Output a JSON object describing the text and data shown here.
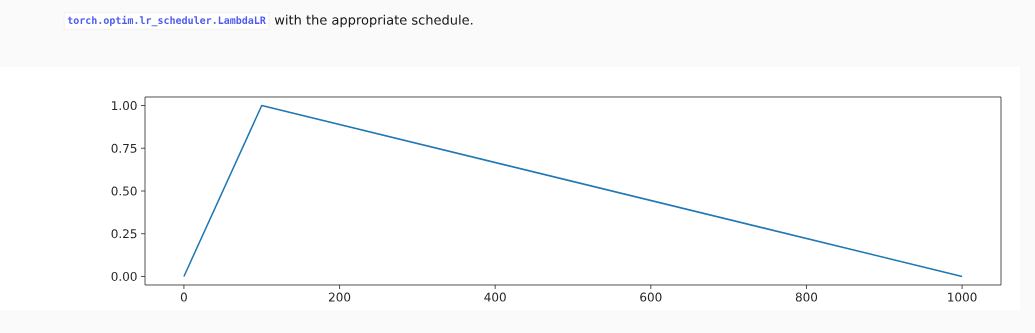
{
  "chart_data": {
    "type": "line",
    "annotations": [
      "torch.optim.lr_scheduler.LambdaLR",
      "with the appropriate schedule."
    ],
    "x": [
      0,
      100,
      1000
    ],
    "series": [
      {
        "color": "#1f77b4",
        "values": [
          0,
          1,
          0
        ]
      }
    ],
    "xlim": [
      -50,
      1050
    ],
    "ylim": [
      -0.05,
      1.05
    ],
    "xticks": [
      0,
      200,
      400,
      600,
      800,
      1000
    ],
    "yticks": [
      {
        "value": 0,
        "label": "0.00"
      },
      {
        "value": 0.25,
        "label": "0.25"
      },
      {
        "value": 0.5,
        "label": "0.50"
      },
      {
        "value": 0.75,
        "label": "0.75"
      },
      {
        "value": 1,
        "label": "1.00"
      }
    ],
    "grid": false,
    "marker": "none",
    "line_style": "solid"
  }
}
